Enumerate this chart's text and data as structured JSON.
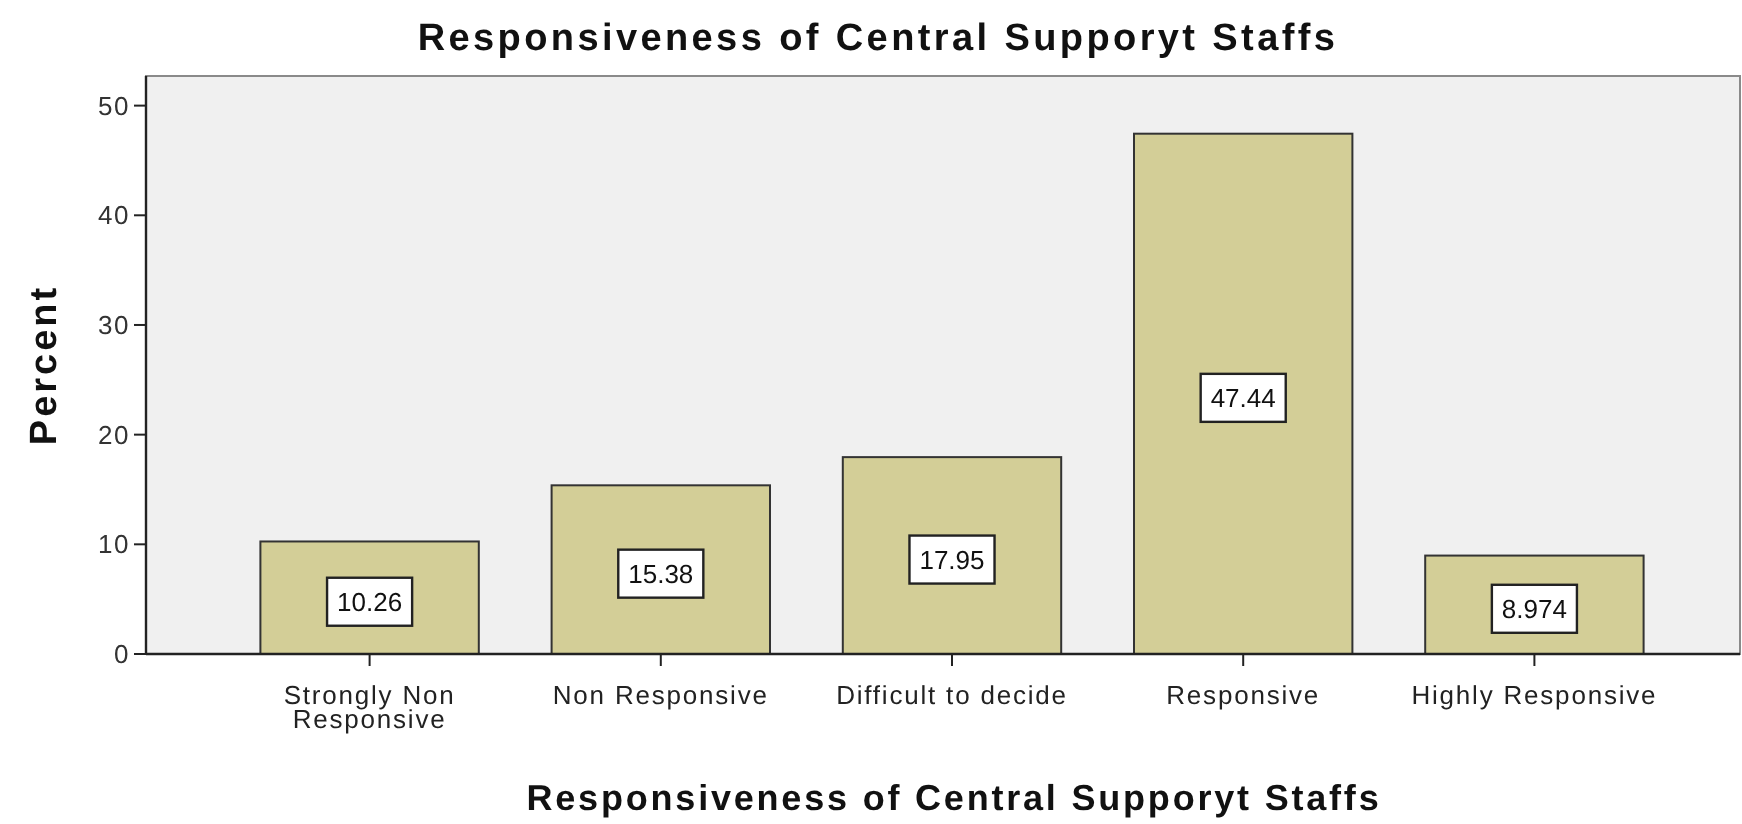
{
  "chart_data": {
    "type": "bar",
    "title": "Responsiveness of Central Supporyt Staffs",
    "xlabel": "Responsiveness of Central Supporyt Staffs",
    "ylabel": "Percent",
    "categories": [
      "Strongly Non Responsive",
      "Non Responsive",
      "Difficult to decide",
      "Responsive",
      "Highly Responsive"
    ],
    "values": [
      10.26,
      15.38,
      17.95,
      47.44,
      8.974
    ],
    "color": "#d3ce97",
    "ylim": [
      0,
      52.7
    ],
    "yticks": [
      0,
      10,
      20,
      30,
      40,
      50
    ],
    "data_labels": true
  }
}
